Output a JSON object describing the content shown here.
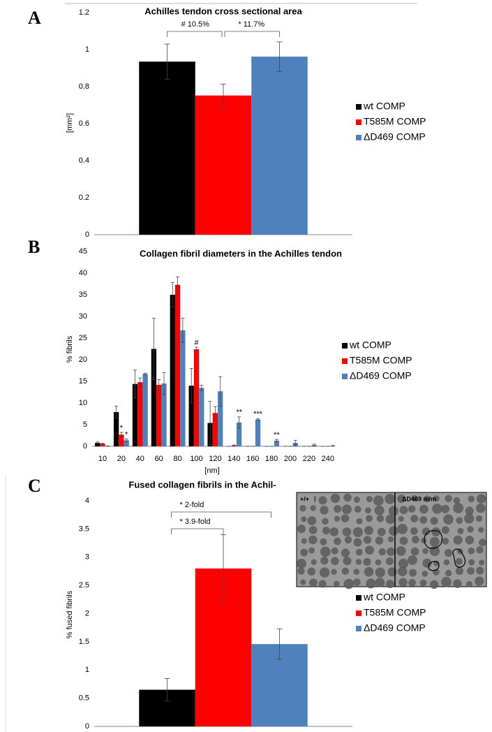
{
  "chart_data": [
    {
      "type": "bar",
      "panel": "A",
      "title": "Achilles tendon cross sectional area",
      "ylabel": "[mm²]",
      "categories": [
        null
      ],
      "series": [
        {
          "name": "wt COMP",
          "color": "#000000",
          "values": [
            0.935
          ],
          "errors": [
            0.095
          ]
        },
        {
          "name": "T585M COMP",
          "color": "#ff0000",
          "values": [
            0.752
          ],
          "errors": [
            0.062
          ]
        },
        {
          "name": "ΔD469 COMP",
          "color": "#4f81bd",
          "values": [
            0.962
          ],
          "errors": [
            0.08
          ]
        }
      ],
      "annotations": [
        "# 10.5%",
        "* 11.7%"
      ],
      "ylim": [
        0,
        1.2
      ],
      "yticks": [
        0,
        0.2,
        0.4,
        0.6,
        0.8,
        1,
        1.2
      ],
      "legend": "right"
    },
    {
      "type": "bar",
      "panel": "B",
      "title": "Collagen fibril diameters in the Achilles tendon",
      "ylabel": "% fibrils",
      "xlabel": "[nm]",
      "categories": [
        "10",
        "20",
        "40",
        "60",
        "80",
        "100",
        "120",
        "140",
        "160",
        "180",
        "200",
        "220",
        "240"
      ],
      "series": [
        {
          "name": "wt COMP",
          "color": "#000000",
          "values": [
            0.8,
            7.9,
            14.4,
            22.5,
            35,
            14,
            5.4,
            0,
            0,
            0,
            0,
            0,
            0
          ],
          "errors": [
            0.2,
            1.4,
            3.2,
            7.1,
            2.8,
            4,
            5,
            0,
            0,
            0,
            0,
            0,
            0
          ],
          "markers": [
            null,
            null,
            null,
            null,
            null,
            null,
            null,
            null,
            null,
            null,
            null,
            null,
            null
          ]
        },
        {
          "name": "T585M COMP",
          "color": "#ff0000",
          "values": [
            0.6,
            2.7,
            14.8,
            14.2,
            37.3,
            22.4,
            7.7,
            0.2,
            0,
            0,
            0,
            0,
            0
          ],
          "errors": [
            0.1,
            0.5,
            1,
            1.2,
            1.8,
            0.5,
            1.5,
            0.1,
            0,
            0,
            0,
            0,
            0
          ],
          "markers": [
            null,
            "*",
            null,
            null,
            null,
            "#",
            null,
            null,
            null,
            null,
            null,
            null,
            null
          ]
        },
        {
          "name": "ΔD469 COMP",
          "color": "#4f81bd",
          "values": [
            0.1,
            1.4,
            16.7,
            14.5,
            26.8,
            13.5,
            12.7,
            5.5,
            6.2,
            1.3,
            0.8,
            0.3,
            0.1
          ],
          "errors": [
            0,
            0.3,
            0.2,
            2.5,
            2.8,
            0.6,
            3.4,
            1.3,
            0.2,
            0.3,
            0.6,
            0.2,
            0.1
          ],
          "markers": [
            null,
            "*",
            null,
            null,
            null,
            null,
            null,
            "**",
            "***",
            "**",
            null,
            null,
            null
          ]
        }
      ],
      "ylim": [
        0,
        45
      ],
      "yticks": [
        0,
        5,
        10,
        15,
        20,
        25,
        30,
        35,
        40,
        45
      ],
      "legend": "right"
    },
    {
      "type": "bar",
      "panel": "C",
      "title": "Fused collagen fibrils in the Achil-",
      "ylabel": "% fused fibrils",
      "categories": [
        null
      ],
      "series": [
        {
          "name": "wt COMP",
          "color": "#000000",
          "values": [
            0.65
          ],
          "errors": [
            0.2
          ]
        },
        {
          "name": "T585M COMP",
          "color": "#ff0000",
          "values": [
            2.8
          ],
          "errors": [
            0.6
          ]
        },
        {
          "name": "ΔD469 COMP",
          "color": "#4f81bd",
          "values": [
            1.46
          ],
          "errors": [
            0.27
          ]
        }
      ],
      "annotations": [
        "* 2-fold",
        "* 3.9-fold"
      ],
      "inset": {
        "labels": [
          "+/+",
          "ΔD469 m/m"
        ]
      },
      "ylim": [
        0,
        4
      ],
      "yticks": [
        0,
        0.5,
        1,
        1.5,
        2,
        2.5,
        3,
        3.5,
        4
      ],
      "legend": "right"
    }
  ]
}
